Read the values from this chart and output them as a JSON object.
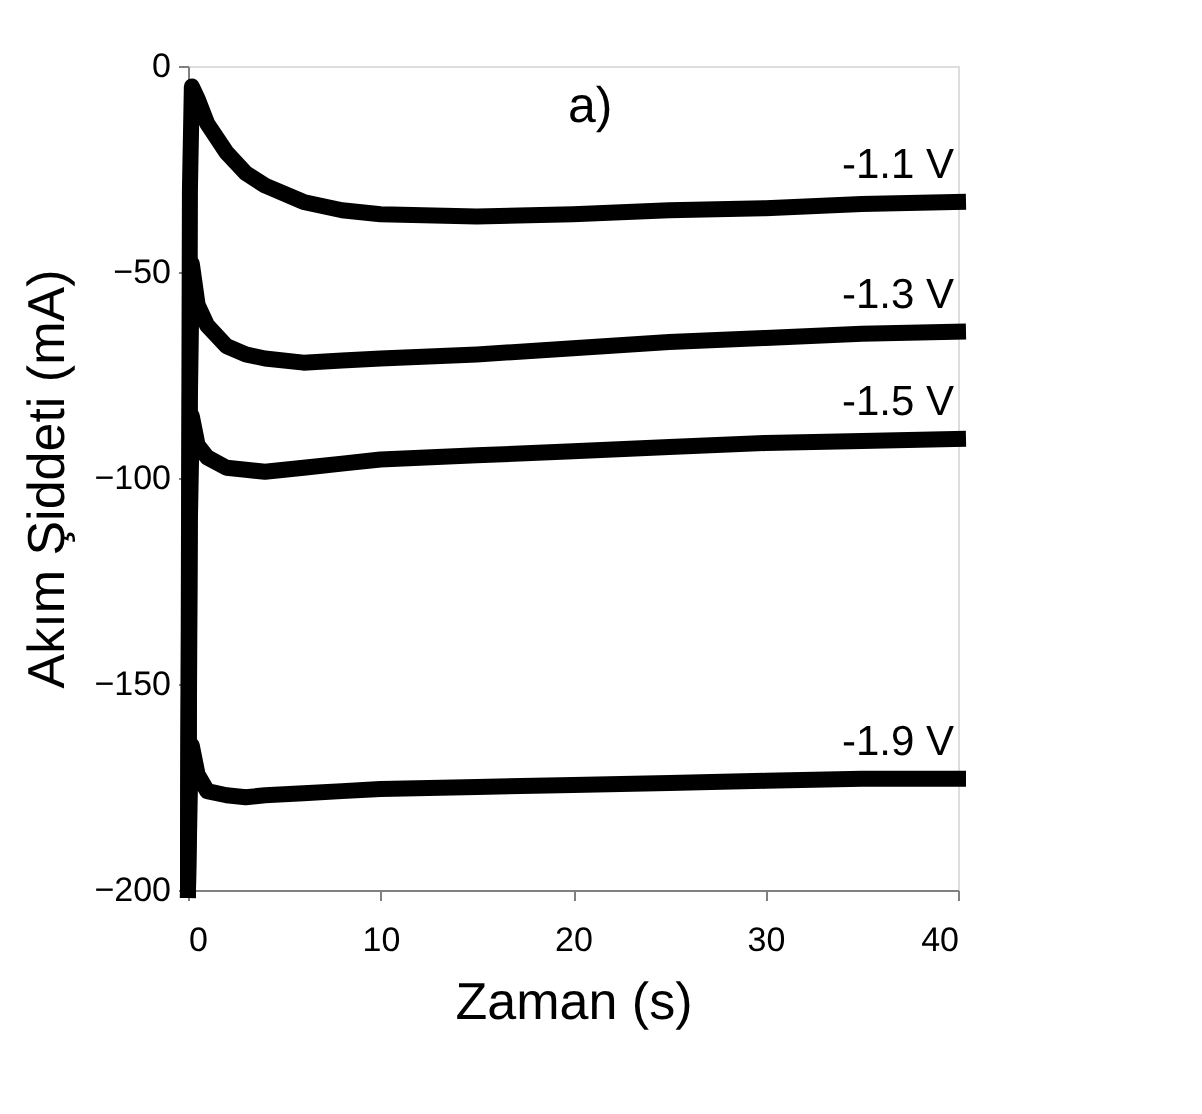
{
  "chart_data": {
    "type": "line",
    "xlabel": "Zaman (s)",
    "ylabel": "Akım Şiddeti (mA)",
    "xlim": [
      0,
      40
    ],
    "ylim": [
      -200,
      0
    ],
    "xticks": [
      0,
      10,
      20,
      30,
      40
    ],
    "yticks": [
      -200,
      -150,
      -100,
      -50,
      0
    ],
    "grid": false,
    "legend": false,
    "annotations": [
      "a)"
    ],
    "series": [
      {
        "name": "-1.1 V",
        "color": "#000000",
        "x": [
          0,
          0.1,
          0.2,
          0.5,
          1,
          2,
          3,
          4,
          6,
          8,
          10,
          15,
          20,
          25,
          30,
          35,
          40
        ],
        "values": [
          -200,
          -30,
          -5,
          -8,
          -14,
          -21,
          -26,
          -29,
          -33,
          -35,
          -36,
          -36.5,
          -36,
          -35,
          -34.5,
          -33.5,
          -33
        ]
      },
      {
        "name": "-1.3 V",
        "color": "#000000",
        "x": [
          0,
          0.1,
          0.2,
          0.5,
          1,
          2,
          3,
          4,
          6,
          8,
          10,
          15,
          20,
          25,
          30,
          35,
          40
        ],
        "values": [
          -200,
          -80,
          -48,
          -58,
          -63,
          -68,
          -70,
          -71,
          -72,
          -71.5,
          -71,
          -70,
          -68.5,
          -67,
          -66,
          -65,
          -64.5
        ]
      },
      {
        "name": "-1.5 V",
        "color": "#000000",
        "x": [
          0,
          0.1,
          0.2,
          0.5,
          1,
          2,
          3,
          4,
          6,
          8,
          10,
          15,
          20,
          25,
          30,
          35,
          40
        ],
        "values": [
          -200,
          -110,
          -85,
          -92,
          -95,
          -97.5,
          -98,
          -98.5,
          -97.5,
          -96.5,
          -95.5,
          -94.5,
          -93.5,
          -92.5,
          -91.5,
          -91,
          -90.5
        ]
      },
      {
        "name": "-1.9 V",
        "color": "#000000",
        "x": [
          0,
          0.1,
          0.2,
          0.5,
          1,
          2,
          3,
          4,
          6,
          8,
          10,
          15,
          20,
          25,
          30,
          35,
          40
        ],
        "values": [
          -200,
          -175,
          -165,
          -172,
          -176,
          -177,
          -177.5,
          -177,
          -176.5,
          -176,
          -175.5,
          -175,
          -174.5,
          -174,
          -173.5,
          -173,
          -173
        ]
      }
    ]
  }
}
